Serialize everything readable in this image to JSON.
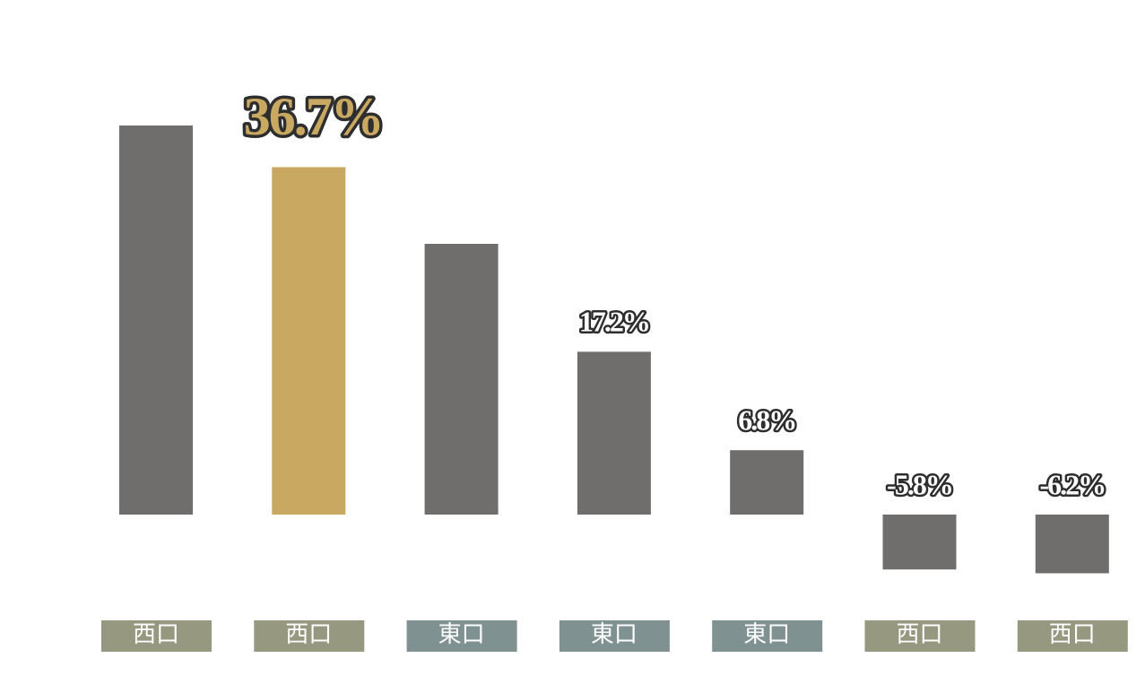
{
  "chart_data": {
    "type": "bar",
    "categories": [
      "西口",
      "西口",
      "東口",
      "東口",
      "東口",
      "西口",
      "西口"
    ],
    "category_colors": [
      "#979880",
      "#979880",
      "#7f9190",
      "#7f9190",
      "#7f9190",
      "#979880",
      "#979880"
    ],
    "values": [
      41.1,
      36.7,
      28.6,
      17.2,
      6.8,
      -5.8,
      -6.2
    ],
    "value_labels": [
      null,
      "36.7%",
      null,
      "17.2%",
      "6.8%",
      "-5.8%",
      "-6.2%"
    ],
    "colors": [
      "#6f6e6c",
      "#c9a862",
      "#6f6e6c",
      "#6f6e6c",
      "#6f6e6c",
      "#6f6e6c",
      "#6f6e6c"
    ],
    "highlight": 1
  }
}
